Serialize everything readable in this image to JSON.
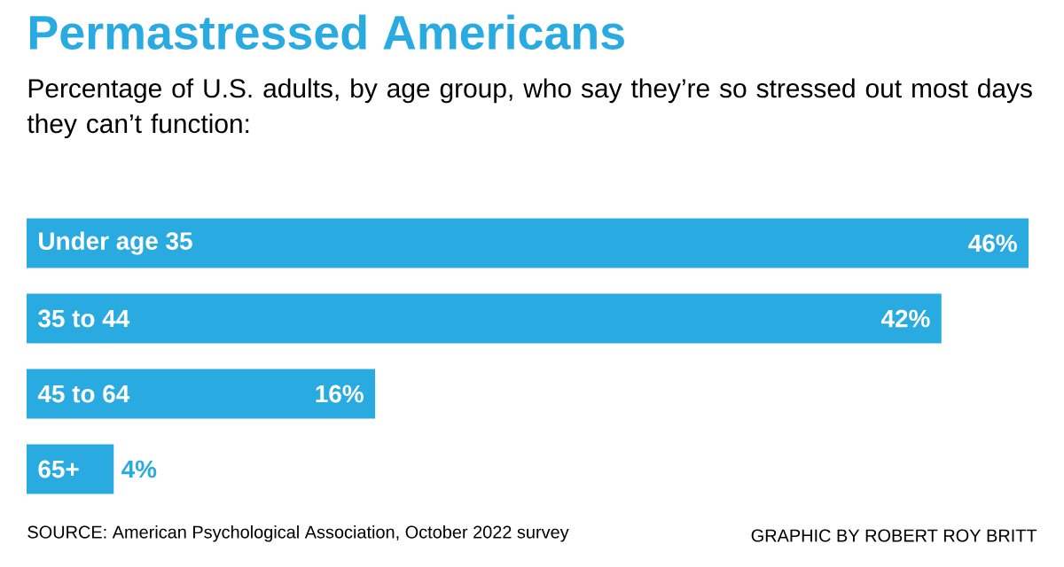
{
  "chart_data": {
    "type": "bar",
    "orientation": "horizontal",
    "title": "Permastressed Americans",
    "subtitle": "Percentage of U.S. adults, by age group, who say they’re so stressed out most days they can’t function:",
    "categories": [
      "Under age 35",
      "35 to 44",
      "45 to 64",
      "65+"
    ],
    "values": [
      46,
      42,
      16,
      4
    ],
    "value_labels": [
      "46%",
      "42%",
      "16%",
      "4%"
    ],
    "color": "#29abe2",
    "annotations": [
      "SOURCE: American Psychological Association, October 2022 survey",
      "GRAPHIC BY ROBERT ROY BRITT"
    ]
  }
}
